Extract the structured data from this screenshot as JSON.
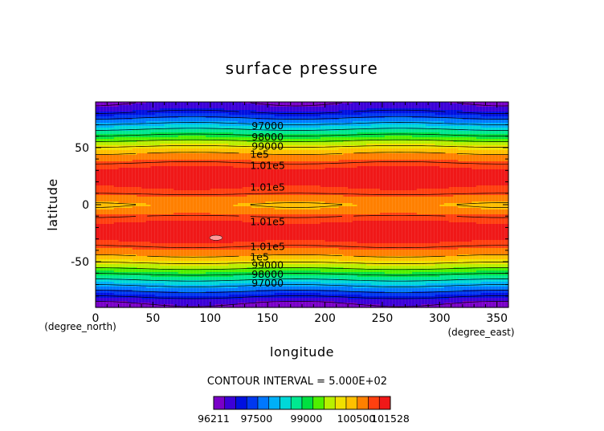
{
  "chart_data": {
    "type": "contour",
    "title": "surface pressure",
    "xlabel": "longitude",
    "ylabel": "latitude",
    "x_unit": "(degree_east)",
    "y_unit": "(degree_north)",
    "xlim": [
      0,
      360
    ],
    "ylim": [
      -90,
      90
    ],
    "xticks": [
      0,
      50,
      100,
      150,
      200,
      250,
      300,
      350
    ],
    "yticks": [
      -50,
      0,
      50
    ],
    "contour_interval_text": "CONTOUR INTERVAL = 5.000E+02",
    "contour_interval": 500,
    "value_range": [
      96211,
      101528
    ],
    "colors": [
      "#7a00c8",
      "#3c00d8",
      "#0010e0",
      "#0038f0",
      "#0078ff",
      "#00b0f8",
      "#00d8d8",
      "#00e890",
      "#00e040",
      "#50f000",
      "#b8f000",
      "#f0e000",
      "#ffc000",
      "#ff8000",
      "#ff4010",
      "#f01818"
    ],
    "colorbar": {
      "ticks": [
        {
          "label": "96211",
          "value": 96211
        },
        {
          "label": "97500",
          "value": 97500
        },
        {
          "label": "99000",
          "value": 99000
        },
        {
          "label": "100500",
          "value": 100500
        },
        {
          "label": "101528",
          "value": 101528
        }
      ]
    },
    "contour_labels": [
      {
        "text": "97000",
        "lon": 150,
        "lat": 69
      },
      {
        "text": "98000",
        "lon": 150,
        "lat": 59
      },
      {
        "text": "99000",
        "lon": 150,
        "lat": 51
      },
      {
        "text": "1e5",
        "lon": 143,
        "lat": 44
      },
      {
        "text": "1.01e5",
        "lon": 150,
        "lat": 34
      },
      {
        "text": "1.01e5",
        "lon": 150,
        "lat": 15
      },
      {
        "text": "1.01e5",
        "lon": 150,
        "lat": -15
      },
      {
        "text": "1.01e5",
        "lon": 150,
        "lat": -37
      },
      {
        "text": "1e5",
        "lon": 143,
        "lat": -46
      },
      {
        "text": "99000",
        "lon": 150,
        "lat": -53
      },
      {
        "text": "98000",
        "lon": 150,
        "lat": -61
      },
      {
        "text": "97000",
        "lon": 150,
        "lat": -69
      }
    ],
    "profile": {
      "lat": [
        -90,
        -85,
        -80,
        -75,
        -70,
        -65,
        -60,
        -55,
        -50,
        -45,
        -40,
        -35,
        -30,
        -25,
        -20,
        -15,
        -10,
        -5,
        0,
        5,
        10,
        15,
        20,
        25,
        30,
        35,
        40,
        45,
        50,
        55,
        60,
        65,
        70,
        75,
        80,
        85,
        90
      ],
      "value": [
        96300,
        96600,
        97100,
        97600,
        98100,
        98600,
        99100,
        99600,
        100100,
        100500,
        100800,
        101100,
        101300,
        101400,
        101350,
        101200,
        101000,
        100600,
        100500,
        100650,
        101050,
        101200,
        101350,
        101400,
        101300,
        101100,
        100800,
        100500,
        100100,
        99600,
        99100,
        98600,
        98100,
        97600,
        97100,
        96700,
        96500
      ]
    }
  }
}
